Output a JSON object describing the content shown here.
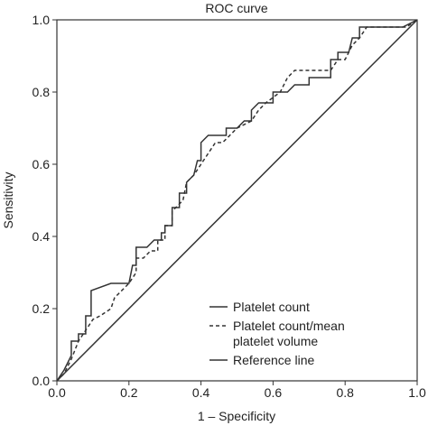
{
  "chart_data": {
    "type": "line",
    "title": "ROC curve",
    "xlabel": "1 – Specificity",
    "ylabel": "Sensitivity",
    "xlim": [
      0,
      1
    ],
    "ylim": [
      0,
      1
    ],
    "xticks": [
      {
        "value": 0,
        "label": "0.0"
      },
      0.2,
      0.4,
      0.6,
      0.8,
      {
        "value": 1,
        "label": "1.0"
      }
    ],
    "yticks": [
      {
        "value": 0,
        "label": "0.0"
      },
      0.2,
      0.4,
      0.6,
      0.8,
      {
        "value": 1,
        "label": "1.0"
      }
    ],
    "legend": "lower right",
    "series": [
      {
        "name": "Platelet count",
        "color": "#333333",
        "dash": false,
        "x": [
          0,
          0.02,
          0.04,
          0.04,
          0.06,
          0.06,
          0.08,
          0.08,
          0.095,
          0.095,
          0.15,
          0.2,
          0.21,
          0.22,
          0.22,
          0.25,
          0.27,
          0.29,
          0.29,
          0.3,
          0.3,
          0.32,
          0.32,
          0.34,
          0.34,
          0.36,
          0.36,
          0.38,
          0.39,
          0.4,
          0.4,
          0.42,
          0.47,
          0.47,
          0.5,
          0.52,
          0.54,
          0.54,
          0.56,
          0.6,
          0.6,
          0.64,
          0.66,
          0.7,
          0.7,
          0.76,
          0.76,
          0.78,
          0.78,
          0.81,
          0.82,
          0.84,
          0.84,
          0.96,
          1
        ],
        "values": [
          0,
          0.03,
          0.07,
          0.11,
          0.11,
          0.13,
          0.13,
          0.18,
          0.18,
          0.25,
          0.27,
          0.27,
          0.32,
          0.32,
          0.37,
          0.37,
          0.39,
          0.39,
          0.41,
          0.41,
          0.43,
          0.43,
          0.48,
          0.48,
          0.52,
          0.52,
          0.55,
          0.57,
          0.61,
          0.61,
          0.66,
          0.68,
          0.68,
          0.7,
          0.7,
          0.72,
          0.72,
          0.75,
          0.77,
          0.77,
          0.8,
          0.8,
          0.82,
          0.82,
          0.84,
          0.84,
          0.89,
          0.89,
          0.91,
          0.91,
          0.95,
          0.95,
          0.98,
          0.98,
          1
        ]
      },
      {
        "name": "Platelet count/mean platelet volume",
        "color": "#333333",
        "dash": true,
        "x": [
          0,
          0.02,
          0.04,
          0.06,
          0.08,
          0.1,
          0.12,
          0.15,
          0.16,
          0.2,
          0.22,
          0.22,
          0.24,
          0.26,
          0.28,
          0.28,
          0.3,
          0.3,
          0.32,
          0.32,
          0.35,
          0.36,
          0.38,
          0.4,
          0.42,
          0.44,
          0.46,
          0.48,
          0.5,
          0.54,
          0.56,
          0.58,
          0.62,
          0.64,
          0.66,
          0.76,
          0.78,
          0.8,
          0.82,
          0.84,
          0.86,
          0.97,
          1
        ],
        "values": [
          0,
          0.02,
          0.06,
          0.11,
          0.14,
          0.17,
          0.18,
          0.2,
          0.23,
          0.27,
          0.3,
          0.34,
          0.34,
          0.36,
          0.36,
          0.39,
          0.39,
          0.43,
          0.43,
          0.47,
          0.5,
          0.55,
          0.57,
          0.6,
          0.63,
          0.66,
          0.66,
          0.68,
          0.7,
          0.72,
          0.75,
          0.77,
          0.8,
          0.84,
          0.86,
          0.86,
          0.89,
          0.89,
          0.93,
          0.95,
          0.98,
          0.98,
          1
        ]
      },
      {
        "name": "Reference line",
        "color": "#333333",
        "dash": false,
        "x": [
          0,
          1
        ],
        "values": [
          0,
          1
        ]
      }
    ]
  }
}
